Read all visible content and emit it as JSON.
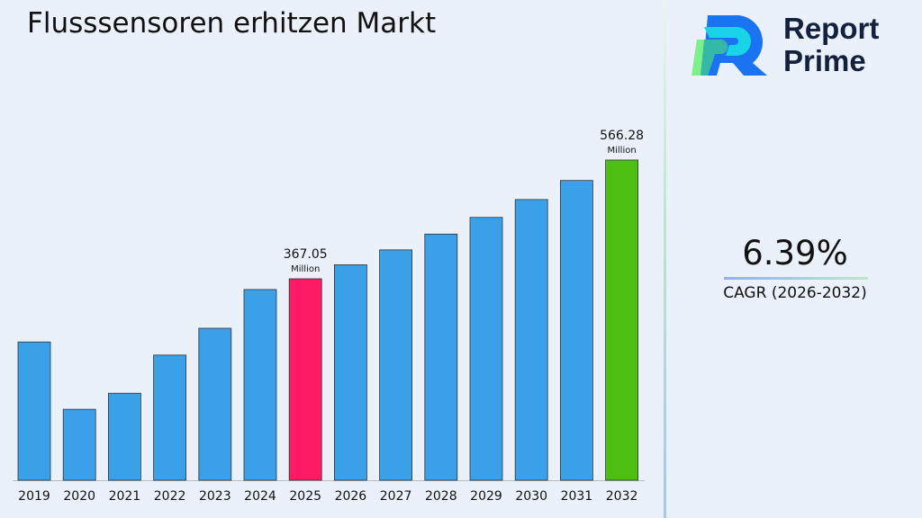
{
  "brand": {
    "line1": "Report",
    "line2": "Prime"
  },
  "cagr": {
    "value": "6.39%",
    "label": "CAGR (2026-2032)"
  },
  "chart_data": {
    "type": "bar",
    "title": "Flusssensoren erhitzen Markt",
    "categories": [
      "2019",
      "2020",
      "2021",
      "2022",
      "2023",
      "2024",
      "2025",
      "2026",
      "2027",
      "2028",
      "2029",
      "2030",
      "2031",
      "2032"
    ],
    "values": [
      261,
      148,
      175,
      239,
      284,
      349,
      367.05,
      390.5,
      415.5,
      442,
      470,
      500,
      532,
      566.28
    ],
    "colors": {
      "default": "#3aa0e8",
      "highlight_2025": "#ff1a66",
      "highlight_2032": "#4cbf12"
    },
    "annotations": [
      {
        "category": "2025",
        "value": "367.05",
        "unit": "Million"
      },
      {
        "category": "2032",
        "value": "566.28",
        "unit": "Million"
      }
    ],
    "grid": false
  }
}
